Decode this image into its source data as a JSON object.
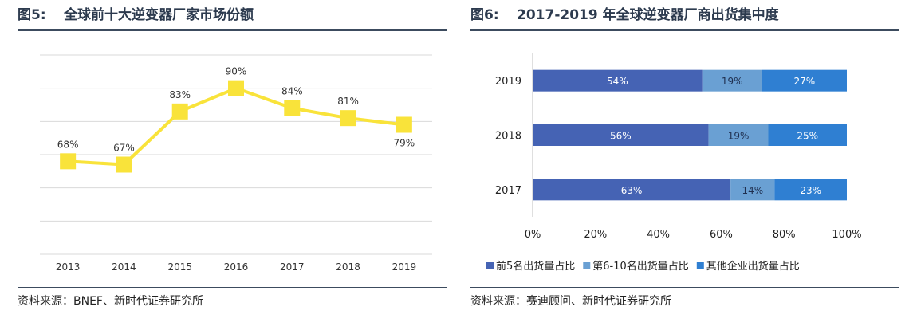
{
  "figures": {
    "left": {
      "number": "图5:",
      "title": "全球前十大逆变器厂家市场份额",
      "source": "资料来源：BNEF、新时代证券研究所"
    },
    "right": {
      "number": "图6:",
      "title": "2017-2019 年全球逆变器厂商出货集中度",
      "source": "资料来源：赛迪顾问、新时代证券研究所"
    }
  },
  "colors": {
    "line": "#f9e33a",
    "marker": "#f9e33a",
    "grid": "#d9d9d9",
    "series": [
      "#4563b4",
      "#6aa0d3",
      "#2f7fd2"
    ],
    "title": "#2c3a4e"
  },
  "chart_data": [
    {
      "type": "line",
      "title": "",
      "xlabel": "",
      "ylabel": "",
      "categories": [
        "2013",
        "2014",
        "2015",
        "2016",
        "2017",
        "2018",
        "2019"
      ],
      "values": [
        68,
        67,
        83,
        90,
        84,
        81,
        79
      ],
      "data_labels": [
        "68%",
        "67%",
        "83%",
        "90%",
        "84%",
        "81%",
        "79%"
      ],
      "ylim": [
        40,
        100
      ],
      "grid": true,
      "legend": "none",
      "marker": "square"
    },
    {
      "type": "bar",
      "orientation": "horizontal",
      "stacked": true,
      "title": "",
      "categories": [
        "2019",
        "2018",
        "2017"
      ],
      "series": [
        {
          "name": "前5名出货量占比",
          "values": [
            54,
            56,
            63
          ],
          "labels": [
            "54%",
            "56%",
            "63%"
          ]
        },
        {
          "name": "第6-10名出货量占比",
          "values": [
            19,
            19,
            14
          ],
          "labels": [
            "19%",
            "19%",
            "14%"
          ]
        },
        {
          "name": "其他企业出货量占比",
          "values": [
            27,
            25,
            23
          ],
          "labels": [
            "27%",
            "25%",
            "23%"
          ]
        }
      ],
      "xticks": [
        "0%",
        "20%",
        "40%",
        "60%",
        "80%",
        "100%"
      ],
      "xlim": [
        0,
        100
      ],
      "grid": false,
      "legend": "bottom"
    }
  ]
}
